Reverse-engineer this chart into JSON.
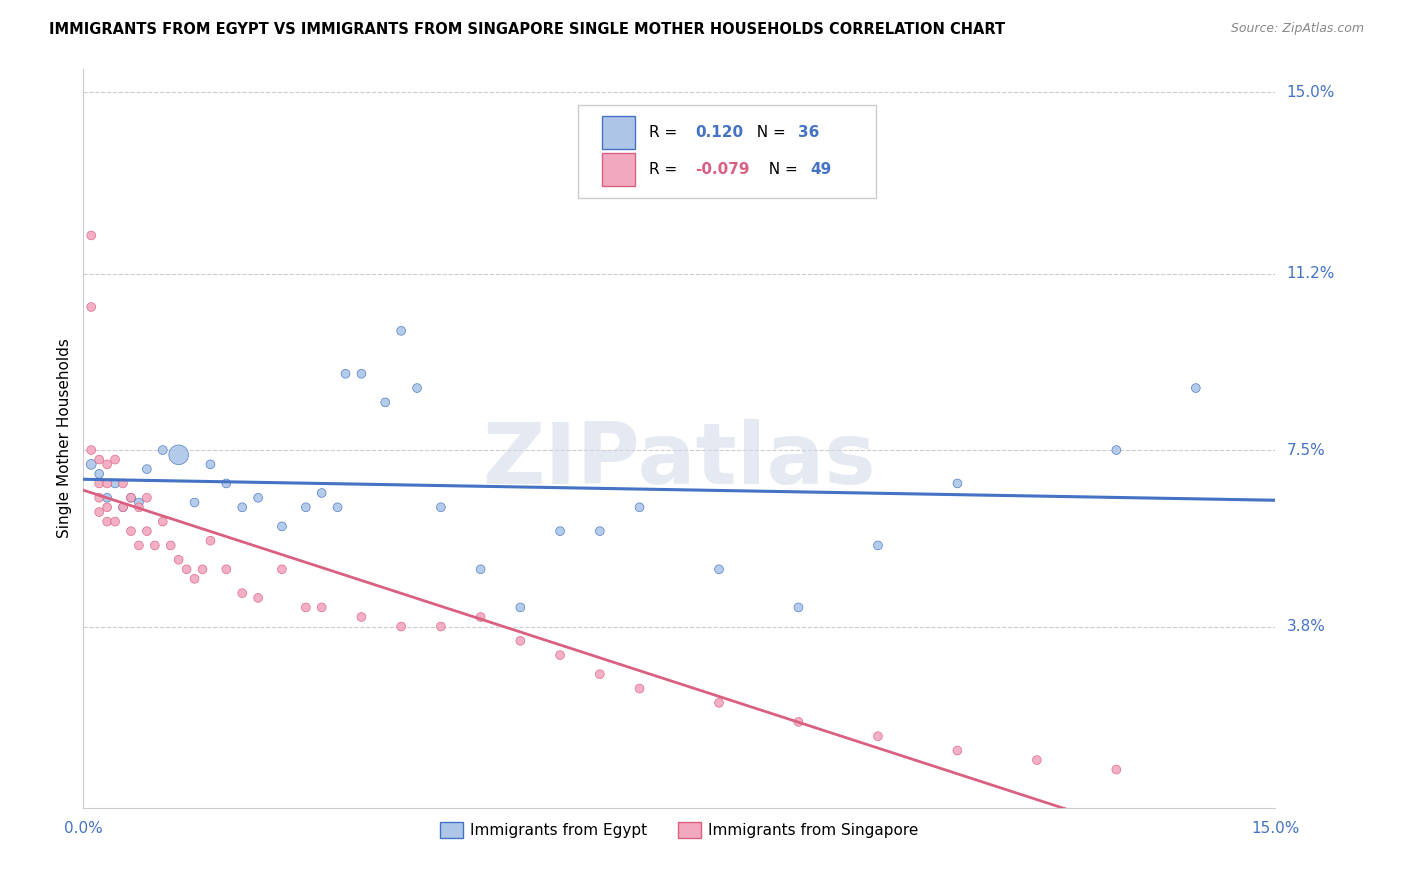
{
  "title": "IMMIGRANTS FROM EGYPT VS IMMIGRANTS FROM SINGAPORE SINGLE MOTHER HOUSEHOLDS CORRELATION CHART",
  "source": "Source: ZipAtlas.com",
  "ylabel": "Single Mother Households",
  "xlim": [
    0.0,
    0.15
  ],
  "ylim": [
    0.0,
    0.155
  ],
  "ytick_labels": [
    "3.8%",
    "7.5%",
    "11.2%",
    "15.0%"
  ],
  "ytick_positions": [
    0.038,
    0.075,
    0.112,
    0.15
  ],
  "background_color": "#ffffff",
  "watermark": "ZIPatlas",
  "color_egypt": "#adc6e8",
  "color_singapore": "#f2a8be",
  "color_egypt_line": "#4472c4",
  "color_singapore_line": "#d96080",
  "color_axis_label": "#4472c4",
  "egypt_x": [
    0.001,
    0.002,
    0.003,
    0.004,
    0.005,
    0.006,
    0.007,
    0.008,
    0.01,
    0.012,
    0.014,
    0.016,
    0.018,
    0.02,
    0.022,
    0.025,
    0.028,
    0.03,
    0.032,
    0.033,
    0.035,
    0.038,
    0.04,
    0.042,
    0.045,
    0.05,
    0.055,
    0.06,
    0.065,
    0.07,
    0.08,
    0.09,
    0.1,
    0.11,
    0.13,
    0.14
  ],
  "egypt_y": [
    0.072,
    0.07,
    0.065,
    0.068,
    0.063,
    0.065,
    0.064,
    0.071,
    0.075,
    0.074,
    0.064,
    0.072,
    0.068,
    0.063,
    0.065,
    0.059,
    0.063,
    0.066,
    0.063,
    0.091,
    0.091,
    0.085,
    0.1,
    0.088,
    0.063,
    0.05,
    0.042,
    0.058,
    0.058,
    0.063,
    0.05,
    0.042,
    0.055,
    0.068,
    0.075,
    0.088
  ],
  "egypt_sizes": [
    50,
    40,
    40,
    40,
    40,
    40,
    40,
    40,
    40,
    200,
    40,
    40,
    40,
    40,
    40,
    40,
    40,
    40,
    40,
    40,
    40,
    40,
    40,
    40,
    40,
    40,
    40,
    40,
    40,
    40,
    40,
    40,
    40,
    40,
    40,
    40
  ],
  "singapore_x": [
    0.001,
    0.001,
    0.001,
    0.002,
    0.002,
    0.002,
    0.002,
    0.003,
    0.003,
    0.003,
    0.003,
    0.004,
    0.004,
    0.005,
    0.005,
    0.006,
    0.006,
    0.007,
    0.007,
    0.008,
    0.008,
    0.009,
    0.01,
    0.011,
    0.012,
    0.013,
    0.014,
    0.015,
    0.016,
    0.018,
    0.02,
    0.022,
    0.025,
    0.028,
    0.03,
    0.035,
    0.04,
    0.045,
    0.05,
    0.055,
    0.06,
    0.065,
    0.07,
    0.08,
    0.09,
    0.1,
    0.11,
    0.12,
    0.13
  ],
  "singapore_y": [
    0.12,
    0.105,
    0.075,
    0.073,
    0.068,
    0.065,
    0.062,
    0.072,
    0.068,
    0.063,
    0.06,
    0.073,
    0.06,
    0.068,
    0.063,
    0.065,
    0.058,
    0.063,
    0.055,
    0.065,
    0.058,
    0.055,
    0.06,
    0.055,
    0.052,
    0.05,
    0.048,
    0.05,
    0.056,
    0.05,
    0.045,
    0.044,
    0.05,
    0.042,
    0.042,
    0.04,
    0.038,
    0.038,
    0.04,
    0.035,
    0.032,
    0.028,
    0.025,
    0.022,
    0.018,
    0.015,
    0.012,
    0.01,
    0.008
  ],
  "singapore_sizes": [
    40,
    40,
    40,
    40,
    40,
    40,
    40,
    40,
    40,
    40,
    40,
    40,
    40,
    40,
    40,
    40,
    40,
    40,
    40,
    40,
    40,
    40,
    40,
    40,
    40,
    40,
    40,
    40,
    40,
    40,
    40,
    40,
    40,
    40,
    40,
    40,
    40,
    40,
    40,
    40,
    40,
    40,
    40,
    40,
    40,
    40,
    40,
    40,
    40
  ]
}
